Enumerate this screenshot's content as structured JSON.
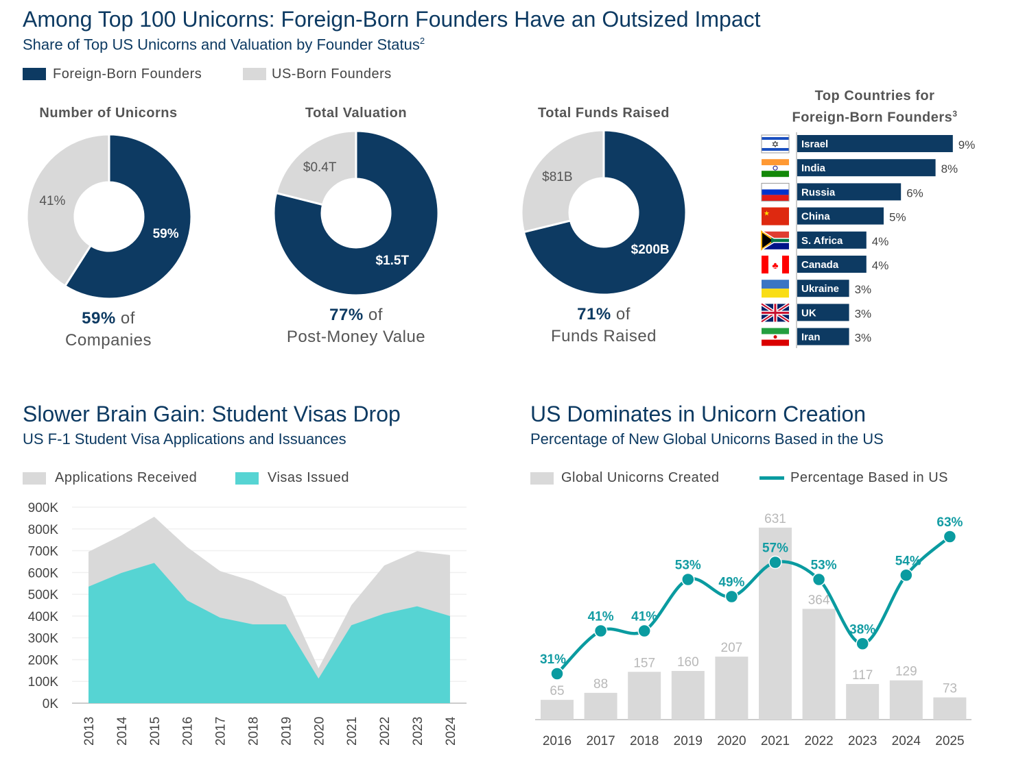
{
  "header": {
    "title": "Among Top 100 Unicorns: Foreign-Born Founders Have an Outsized Impact",
    "subtitle": "Share of Top US Unicorns and Valuation by Founder Status",
    "subtitle_sup": "2"
  },
  "colors": {
    "foreign": "#0d3a62",
    "us": "#d9d9d9",
    "applications": "#d9d9d9",
    "issued": "#56d4d3",
    "line": "#0a9ba0",
    "bar": "#d9d9d9"
  },
  "legend_top": {
    "foreign": "Foreign-Born Founders",
    "us": "US-Born Founders"
  },
  "chart_data": [
    {
      "type": "pie",
      "title": "Number of Unicorns",
      "slices": [
        {
          "name": "Foreign-Born Founders",
          "value": 59,
          "label": "59%"
        },
        {
          "name": "US-Born Founders",
          "value": 41,
          "label": "41%"
        }
      ],
      "caption_bold": "59%",
      "caption_rest": " of",
      "caption_line2": "Companies"
    },
    {
      "type": "pie",
      "title": "Total Valuation",
      "slices": [
        {
          "name": "Foreign-Born Founders",
          "value": 1.5,
          "label": "$1.5T"
        },
        {
          "name": "US-Born Founders",
          "value": 0.4,
          "label": "$0.4T"
        }
      ],
      "caption_bold": "77%",
      "caption_rest": " of",
      "caption_line2": "Post-Money Value"
    },
    {
      "type": "pie",
      "title": "Total Funds Raised",
      "slices": [
        {
          "name": "Foreign-Born Founders",
          "value": 200,
          "label": "$200B"
        },
        {
          "name": "US-Born Founders",
          "value": 81,
          "label": "$81B"
        }
      ],
      "caption_bold": "71%",
      "caption_rest": " of",
      "caption_line2": "Funds Raised"
    },
    {
      "type": "bar",
      "orientation": "horizontal",
      "title_line1": "Top Countries for",
      "title_line2": "Foreign-Born Founders",
      "title_sup": "3",
      "categories": [
        "Israel",
        "India",
        "Russia",
        "China",
        "S. Africa",
        "Canada",
        "Ukraine",
        "UK",
        "Iran"
      ],
      "values": [
        9,
        8,
        6,
        5,
        4,
        4,
        3,
        3,
        3
      ],
      "labels": [
        "9%",
        "8%",
        "6%",
        "5%",
        "4%",
        "4%",
        "3%",
        "3%",
        "3%"
      ],
      "flags": [
        "israel-flag-icon",
        "india-flag-icon",
        "russia-flag-icon",
        "china-flag-icon",
        "south-africa-flag-icon",
        "canada-flag-icon",
        "ukraine-flag-icon",
        "uk-flag-icon",
        "iran-flag-icon"
      ]
    },
    {
      "type": "area",
      "title": "Slower Brain Gain: Student Visas Drop",
      "subtitle": "US F-1 Student Visa Applications and Issuances",
      "x": [
        "2013",
        "2014",
        "2015",
        "2016",
        "2017",
        "2018",
        "2019",
        "2020",
        "2021",
        "2022",
        "2023",
        "2024"
      ],
      "series": [
        {
          "name": "Applications Received",
          "values": [
            695000,
            770000,
            856000,
            717000,
            607000,
            560000,
            488000,
            160000,
            450000,
            632000,
            698000,
            680000
          ]
        },
        {
          "name": "Visas Issued",
          "values": [
            535000,
            598000,
            644000,
            472000,
            393000,
            362000,
            362000,
            113000,
            358000,
            411000,
            445000,
            400000
          ]
        }
      ],
      "yticks": [
        "0K",
        "100K",
        "200K",
        "300K",
        "400K",
        "500K",
        "600K",
        "700K",
        "800K",
        "900K"
      ],
      "ylim": [
        0,
        900000
      ],
      "grid": true
    },
    {
      "type": "bar+line",
      "title": "US Dominates in Unicorn Creation",
      "subtitle": "Percentage of New Global Unicorns Based in the US",
      "categories": [
        "2016",
        "2017",
        "2018",
        "2019",
        "2020",
        "2021",
        "2022",
        "2023",
        "2024",
        "2025"
      ],
      "series": [
        {
          "name": "Global Unicorns Created",
          "values": [
            65,
            88,
            157,
            160,
            207,
            631,
            364,
            117,
            129,
            73
          ]
        },
        {
          "name": "Percentage Based in US",
          "values": [
            31,
            41,
            41,
            53,
            49,
            57,
            53,
            38,
            54,
            63
          ],
          "labels": [
            "31%",
            "41%",
            "41%",
            "53%",
            "49%",
            "57%",
            "53%",
            "38%",
            "54%",
            "63%"
          ]
        }
      ]
    }
  ]
}
